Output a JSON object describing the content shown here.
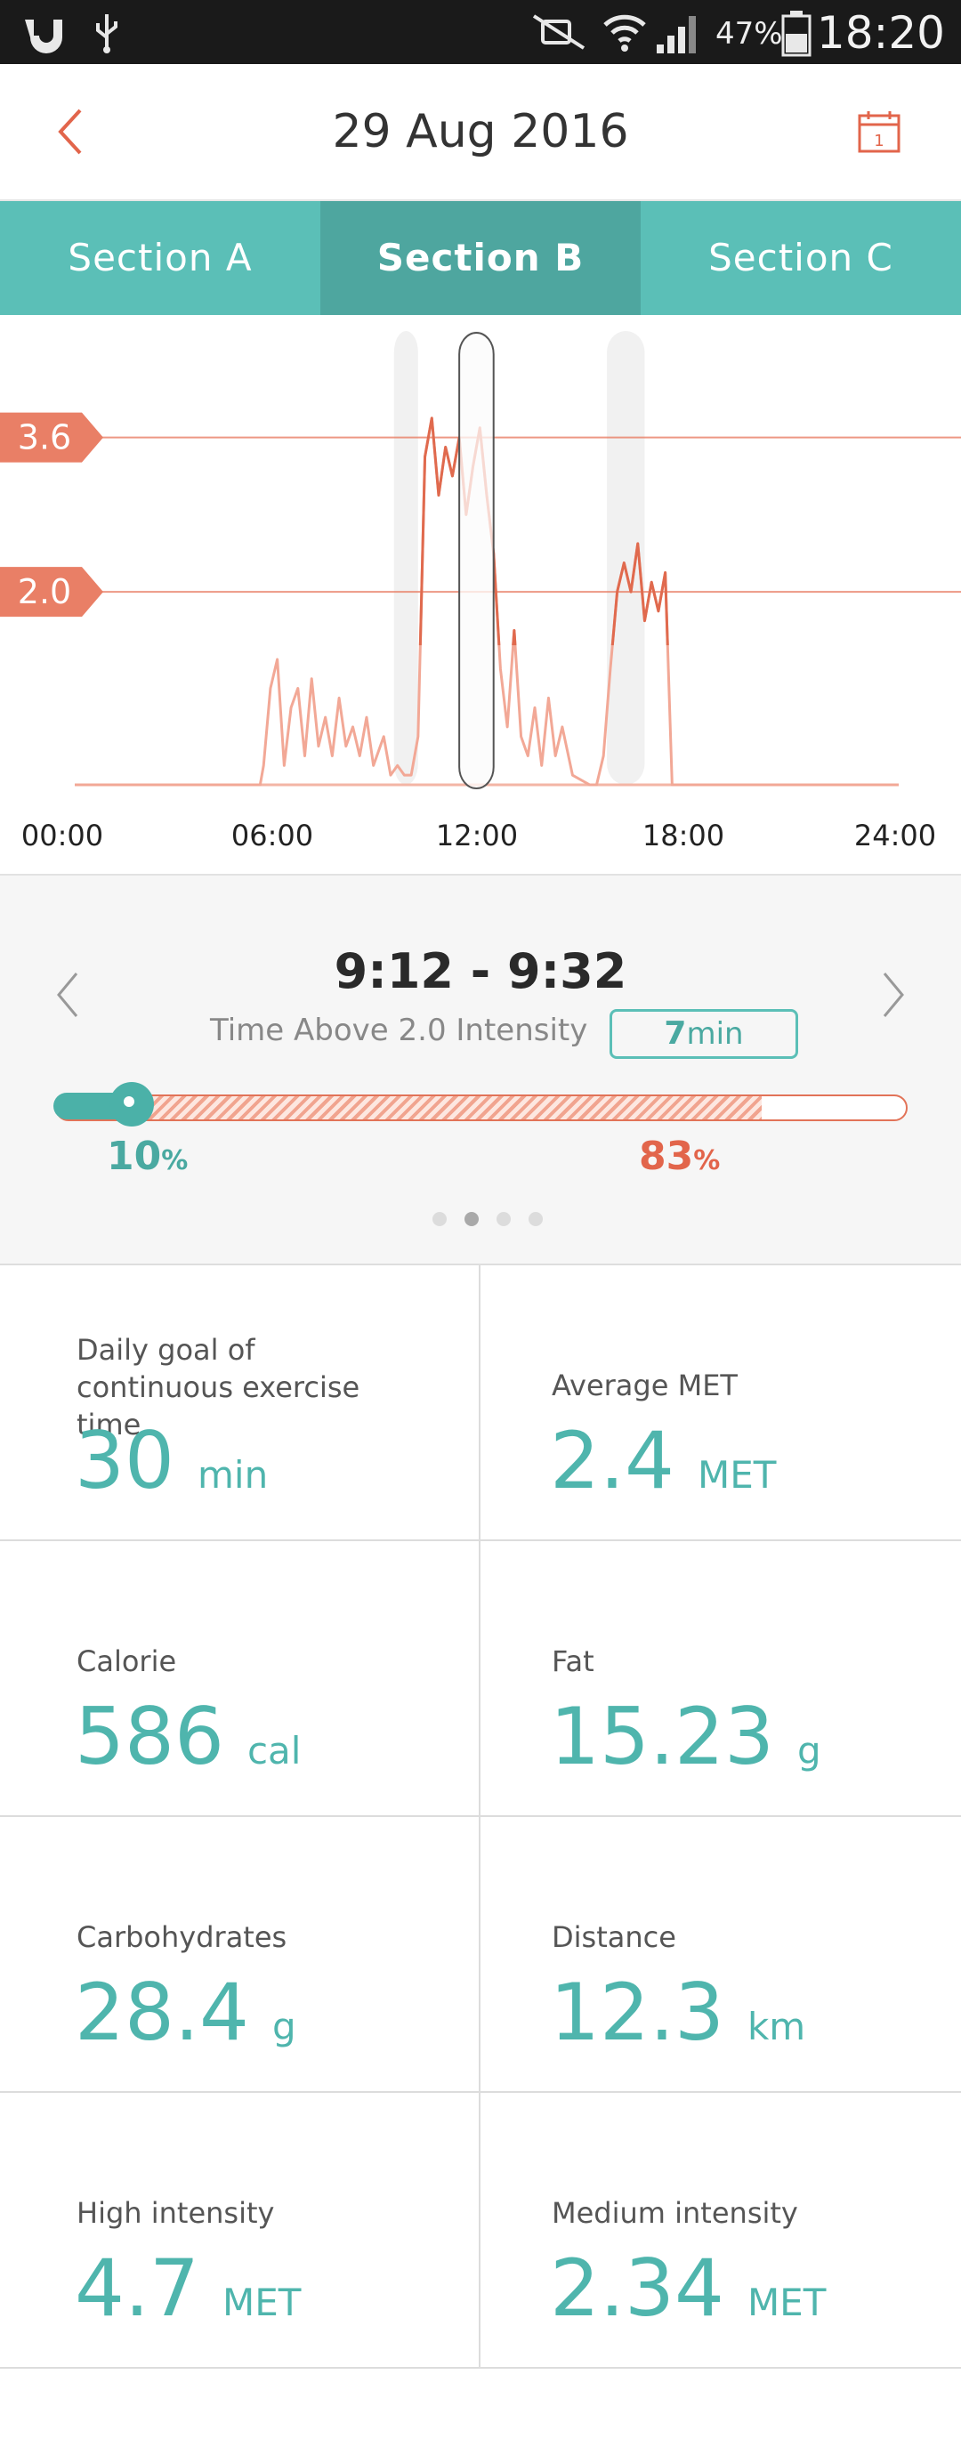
{
  "status_bar": {
    "battery_percent": "47%",
    "time": "18:20"
  },
  "header": {
    "date": "29 Aug 2016"
  },
  "tabs": [
    {
      "label": "Section A"
    },
    {
      "label": "Section B"
    },
    {
      "label": "Section C"
    }
  ],
  "chart_data": {
    "type": "line",
    "x_ticks": [
      "00:00",
      "06:00",
      "12:00",
      "18:00",
      "24:00"
    ],
    "threshold_labels": [
      "3.6",
      "2.0"
    ],
    "thresholds": [
      3.6,
      2.0
    ],
    "x_unit": "hours",
    "xlim": [
      0,
      24
    ],
    "ylim": [
      0,
      4.5
    ],
    "series": [
      {
        "x": [
          0,
          1,
          2,
          3,
          4,
          5,
          5.4,
          5.5,
          5.7,
          5.9,
          6.1,
          6.3,
          6.5,
          6.7,
          6.9,
          7.1,
          7.3,
          7.5,
          7.7,
          7.9,
          8.1,
          8.3,
          8.5,
          8.7,
          9.0,
          9.2,
          9.4,
          9.6,
          9.8,
          10.0,
          10.2,
          10.4,
          10.6,
          10.8,
          11.0,
          11.2,
          11.4,
          11.6,
          11.8,
          12.0,
          12.2,
          12.4,
          12.6,
          12.8,
          13.0,
          13.2,
          13.4,
          13.6,
          13.8,
          14.0,
          14.2,
          14.5,
          15.0,
          15.2,
          15.4,
          15.6,
          15.8,
          16.0,
          16.2,
          16.4,
          16.6,
          16.8,
          17.0,
          17.2,
          17.4,
          17.6,
          17.8,
          18,
          19,
          20,
          21,
          22,
          23,
          24
        ],
        "y": [
          0,
          0,
          0,
          0,
          0,
          0,
          0,
          0.2,
          1.0,
          1.3,
          0.2,
          0.8,
          1.0,
          0.3,
          1.1,
          0.4,
          0.7,
          0.3,
          0.9,
          0.4,
          0.6,
          0.3,
          0.7,
          0.2,
          0.5,
          0.1,
          0.2,
          0.1,
          0.1,
          0.5,
          3.4,
          3.8,
          3.0,
          3.5,
          3.2,
          3.6,
          2.8,
          3.3,
          3.7,
          3.0,
          2.4,
          1.2,
          0.6,
          1.6,
          0.5,
          0.3,
          0.8,
          0.2,
          0.9,
          0.3,
          0.6,
          0.1,
          0,
          0,
          0.3,
          1.2,
          2.0,
          2.3,
          2.0,
          2.5,
          1.7,
          2.1,
          1.8,
          2.2,
          0,
          0,
          0,
          0,
          0,
          0,
          0,
          0,
          0,
          0
        ]
      }
    ],
    "highlight_windows": [
      [
        9.3,
        10.0
      ],
      [
        11.2,
        12.2
      ],
      [
        15.5,
        16.6
      ]
    ],
    "selected_window": [
      11.2,
      12.2
    ]
  },
  "panel": {
    "time_range": "9:12 - 9:32",
    "above_label": "Time Above 2.0 Intensity",
    "above_value": "7",
    "above_unit": "min",
    "left_percent": "10",
    "right_percent": "83",
    "percent_sign": "%",
    "teal_fraction": 0.1,
    "hatch_fraction": 0.83
  },
  "stats": [
    {
      "label": "Daily goal of continuous exercise time",
      "value": "30",
      "unit": "min"
    },
    {
      "label": "Average MET",
      "value": "2.4",
      "unit": "MET"
    },
    {
      "label": "Calorie",
      "value": "586",
      "unit": "cal"
    },
    {
      "label": "Fat",
      "value": "15.23",
      "unit": "g"
    },
    {
      "label": "Carbohydrates",
      "value": "28.4",
      "unit": "g"
    },
    {
      "label": "Distance",
      "value": "12.3",
      "unit": "km"
    },
    {
      "label": "High intensity",
      "value": "4.7",
      "unit": "MET"
    },
    {
      "label": "Medium intensity",
      "value": "2.34",
      "unit": "MET"
    }
  ],
  "colors": {
    "teal": "#5bbfb7",
    "teal_dark": "#4ea69f",
    "coral": "#e97f66",
    "line_dark": "#e06a4e",
    "line_light": "#f2a896"
  }
}
